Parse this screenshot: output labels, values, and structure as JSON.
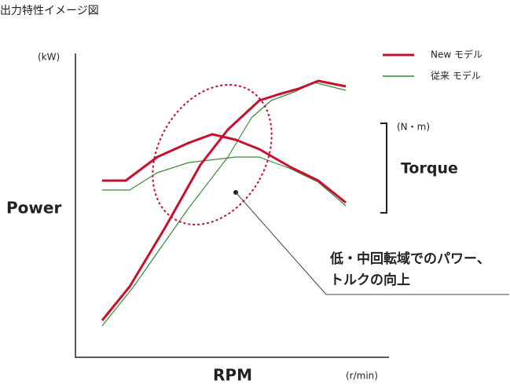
{
  "header": {
    "title": "出力特性イメージ図"
  },
  "axes": {
    "y_unit": "(kW)",
    "y_label": "Power",
    "x_label": "RPM",
    "x_unit": "(r/min)"
  },
  "legend": {
    "new": "New モデル",
    "old": "従来 モデル"
  },
  "torque": {
    "unit": "(N・m)",
    "label": "Torque"
  },
  "annotation": {
    "lines": [
      "低・中回転域でのパワー、",
      "トルクの向上"
    ]
  }
}
